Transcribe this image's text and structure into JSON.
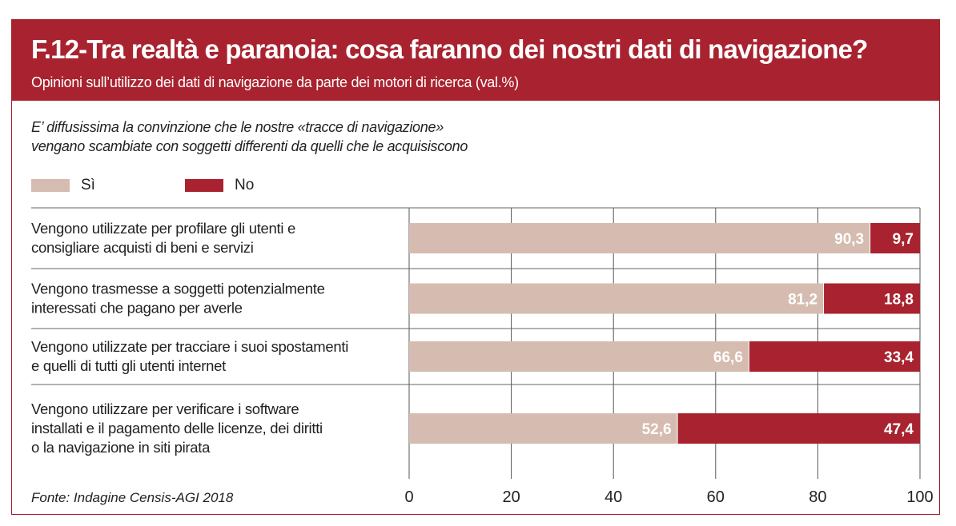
{
  "header": {
    "title": "F.12-Tra realtà e paranoia: cosa faranno dei nostri dati di navigazione?",
    "subtitle": "Opinioni sull’utilizzo dei dati di navigazione da parte dei motori di ricerca (val.%)"
  },
  "intro": "E’ diffusissima la convinzione che le nostre «tracce di navigazione»\nvengano scambiate con soggetti differenti da quelli che le acquisiscono",
  "source": "Fonte: Indagine Censis-AGI 2018",
  "colors": {
    "header_bg": "#a8232f",
    "si": "#d6bcb0",
    "no": "#a8232f"
  },
  "chart_data": {
    "type": "bar",
    "orientation": "horizontal",
    "stacked": true,
    "categories": [
      [
        "Vengono utilizzate per profilare gli utenti e",
        "consigliare acquisti di beni e servizi"
      ],
      [
        "Vengono trasmesse a soggetti potenzialmente",
        "interessati che pagano per averle"
      ],
      [
        "Vengono utilizzate per tracciare i suoi spostamenti",
        "e quelli di tutti gli utenti internet"
      ],
      [
        "Vengono utilizzare per verificare i software",
        "installati e il pagamento delle licenze, dei diritti",
        "o la navigazione in siti pirata"
      ]
    ],
    "series": [
      {
        "name": "Sì",
        "color": "#d6bcb0",
        "values": [
          90.3,
          81.2,
          66.6,
          52.6
        ],
        "labels": [
          "90,3",
          "81,2",
          "66,6",
          "52,6"
        ]
      },
      {
        "name": "No",
        "color": "#a8232f",
        "values": [
          9.7,
          18.8,
          33.4,
          47.4
        ],
        "labels": [
          "9,7",
          "18,8",
          "33,4",
          "47,4"
        ]
      }
    ],
    "xlim": [
      0,
      100
    ],
    "xticks": [
      "0",
      "20",
      "40",
      "60",
      "80",
      "100"
    ],
    "grid": true,
    "legend": "top-left"
  }
}
